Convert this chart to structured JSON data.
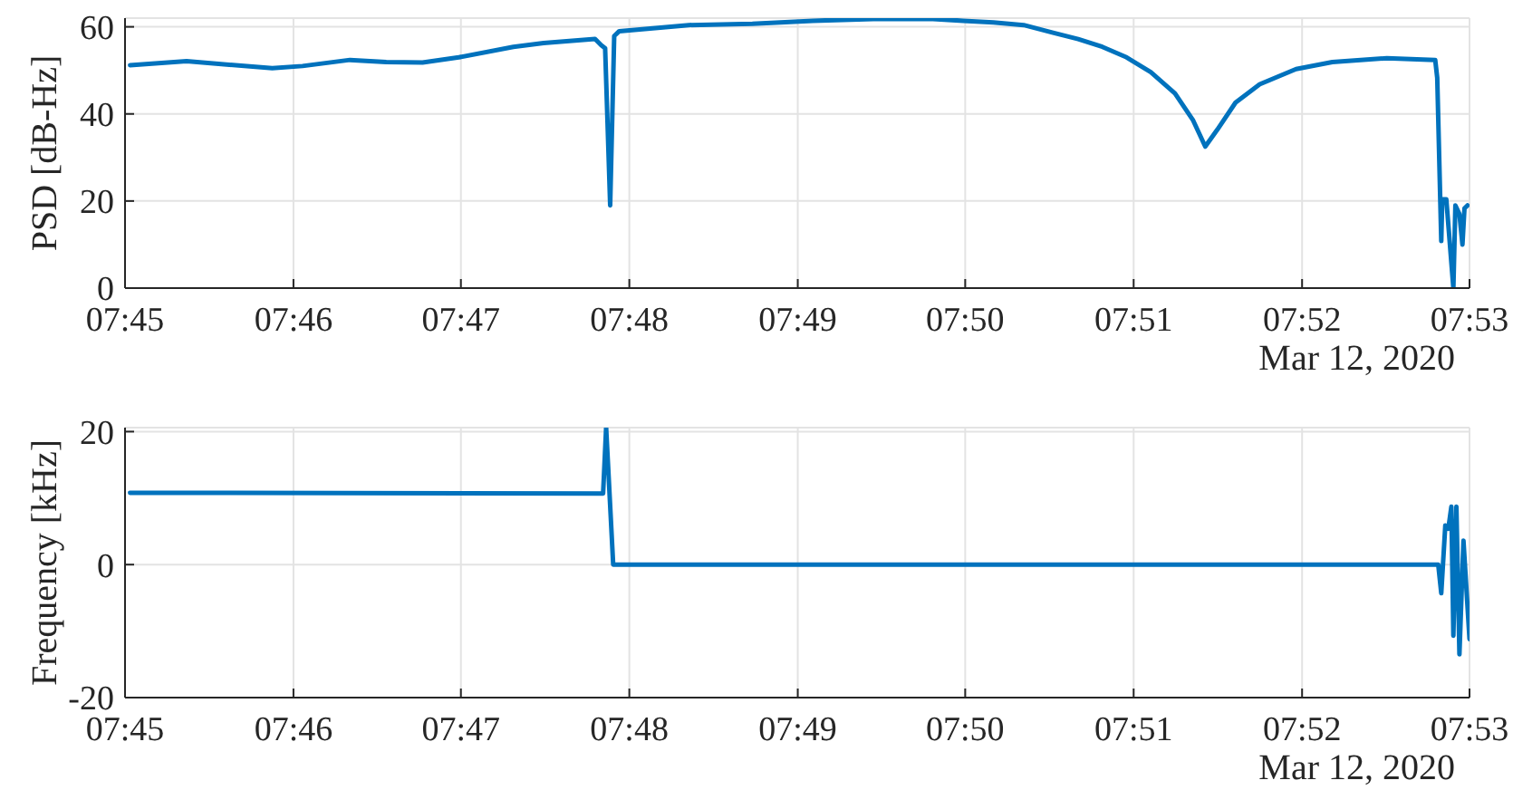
{
  "chart_data": [
    {
      "type": "line",
      "ylabel": "PSD [dB-Hz]",
      "annotations": [
        "Mar 12, 2020"
      ],
      "x": [
        7.7505,
        7.7561,
        7.7646,
        7.7676,
        7.7723,
        7.7759,
        7.7795,
        7.7831,
        7.7885,
        7.7915,
        7.7966,
        7.7972,
        7.7976,
        7.7981,
        7.7985,
        7.799,
        7.8059,
        7.8122,
        7.8182,
        7.8242,
        7.8301,
        7.8331,
        7.8361,
        7.8391,
        7.8421,
        7.8445,
        7.8469,
        7.8493,
        7.8517,
        7.8541,
        7.8559,
        7.8571,
        7.8583,
        7.8601,
        7.8625,
        7.8661,
        7.8697,
        7.8751,
        7.8799,
        7.8801,
        7.8805,
        7.8806,
        7.881,
        7.8817,
        7.8819,
        7.8823,
        7.8826,
        7.8828,
        7.8831
      ],
      "series": [
        {
          "color": "#0072bd",
          "values": [
            51.2,
            52.1,
            50.5,
            51.0,
            52.4,
            51.9,
            51.8,
            53.0,
            55.4,
            56.3,
            57.2,
            55.8,
            55.1,
            19.0,
            57.9,
            59.0,
            60.4,
            60.7,
            61.4,
            61.8,
            61.8,
            61.4,
            61.0,
            60.4,
            58.6,
            57.2,
            55.4,
            53.0,
            49.6,
            44.7,
            38.5,
            32.5,
            36.4,
            42.6,
            46.8,
            50.3,
            51.9,
            52.8,
            52.4,
            48.3,
            10.8,
            20.4,
            20.4,
            0,
            19,
            17,
            10,
            18.3,
            19
          ]
        }
      ],
      "xlim": [
        7.75,
        7.8833
      ],
      "xticks": [
        {
          "value": 7.75,
          "label": "07:45"
        },
        {
          "value": 7.7667,
          "label": "07:46"
        },
        {
          "value": 7.7833,
          "label": "07:47"
        },
        {
          "value": 7.8,
          "label": "07:48"
        },
        {
          "value": 7.8167,
          "label": "07:49"
        },
        {
          "value": 7.8333,
          "label": "07:50"
        },
        {
          "value": 7.85,
          "label": "07:51"
        },
        {
          "value": 7.8667,
          "label": "07:52"
        },
        {
          "value": 7.8833,
          "label": "07:53"
        }
      ],
      "ylim": [
        0,
        62
      ],
      "yticks": [
        0,
        20,
        40,
        60
      ],
      "grid": true
    },
    {
      "type": "line",
      "ylabel": "Frequency [kHz]",
      "annotations": [
        "Mar 12, 2020"
      ],
      "x": [
        7.7505,
        7.7974,
        7.7977,
        7.7984,
        7.8802,
        7.8805,
        7.8809,
        7.8812,
        7.8815,
        7.8817,
        7.882,
        7.8823,
        7.8827,
        7.8833
      ],
      "series": [
        {
          "color": "#0072bd",
          "values": [
            10.8,
            10.7,
            20.6,
            0,
            0,
            -4.3,
            5.9,
            5.4,
            8.7,
            -10.7,
            8.7,
            -13.5,
            3.6,
            -11.2
          ]
        }
      ],
      "xlim": [
        7.75,
        7.8833
      ],
      "xticks": [
        {
          "value": 7.75,
          "label": "07:45"
        },
        {
          "value": 7.7667,
          "label": "07:46"
        },
        {
          "value": 7.7833,
          "label": "07:47"
        },
        {
          "value": 7.8,
          "label": "07:48"
        },
        {
          "value": 7.8167,
          "label": "07:49"
        },
        {
          "value": 7.8333,
          "label": "07:50"
        },
        {
          "value": 7.85,
          "label": "07:51"
        },
        {
          "value": 7.8667,
          "label": "07:52"
        },
        {
          "value": 7.8833,
          "label": "07:53"
        }
      ],
      "ylim": [
        -20,
        20.6
      ],
      "yticks": [
        -20,
        0,
        20
      ],
      "grid": true
    }
  ]
}
